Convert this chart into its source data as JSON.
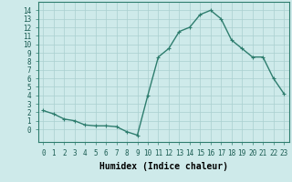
{
  "x": [
    0,
    1,
    2,
    3,
    4,
    5,
    6,
    7,
    8,
    9,
    10,
    11,
    12,
    13,
    14,
    15,
    16,
    17,
    18,
    19,
    20,
    21,
    22,
    23
  ],
  "y": [
    2.2,
    1.8,
    1.2,
    1.0,
    0.5,
    0.4,
    0.4,
    0.3,
    -0.3,
    -0.7,
    4.0,
    8.5,
    9.5,
    11.5,
    12.0,
    13.5,
    14.0,
    13.0,
    10.5,
    9.5,
    8.5,
    8.5,
    6.0,
    4.2
  ],
  "line_color": "#2e7d6e",
  "marker": "+",
  "bg_color": "#ceeaea",
  "grid_color": "#aacfcf",
  "xlabel": "Humidex (Indice chaleur)",
  "xlim": [
    -0.5,
    23.5
  ],
  "ylim": [
    -1.5,
    15
  ],
  "xticks": [
    0,
    1,
    2,
    3,
    4,
    5,
    6,
    7,
    8,
    9,
    10,
    11,
    12,
    13,
    14,
    15,
    16,
    17,
    18,
    19,
    20,
    21,
    22,
    23
  ],
  "yticks": [
    0,
    1,
    2,
    3,
    4,
    5,
    6,
    7,
    8,
    9,
    10,
    11,
    12,
    13,
    14
  ],
  "xlabel_fontsize": 7,
  "tick_fontsize": 5.5,
  "line_width": 1.0
}
